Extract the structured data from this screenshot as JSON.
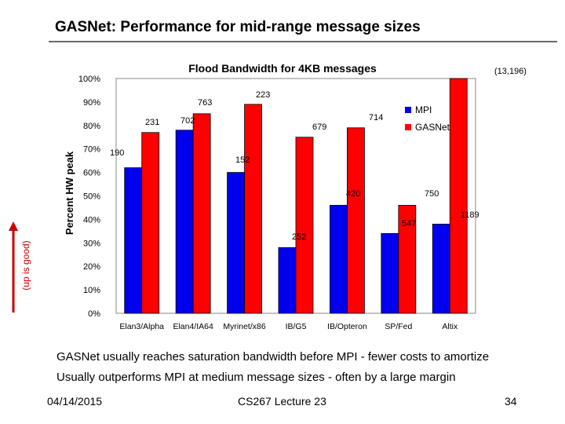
{
  "slide": {
    "title": "GASNet: Performance for mid-range message sizes",
    "side_note": "(up is good)",
    "bullets": [
      "GASNet usually reaches saturation bandwidth before MPI - fewer costs to amortize",
      "Usually outperforms MPI at medium message sizes - often by a large margin"
    ],
    "footer": {
      "date": "04/14/2015",
      "course": "CS267 Lecture 23",
      "page": "34"
    }
  },
  "colors": {
    "mpi": "#0000ee",
    "gasnet": "#ff0000",
    "arrow": "#cc0000"
  },
  "chart_data": {
    "type": "bar",
    "title": "Flood Bandwidth for 4KB messages",
    "ylabel": "Percent HW peak",
    "xlabel": "",
    "ylim": [
      0,
      100
    ],
    "yticks": [
      "0%",
      "10%",
      "20%",
      "30%",
      "40%",
      "50%",
      "60%",
      "70%",
      "80%",
      "90%",
      "100%"
    ],
    "grid": false,
    "legend": "right",
    "categories": [
      "Elan3/Alpha",
      "Elan4/IA64",
      "Myrinet/x86",
      "IB/G5",
      "IB/Opteron",
      "SP/Fed",
      "Altix"
    ],
    "series": [
      {
        "name": "MPI",
        "values": [
          62,
          78,
          60,
          28,
          46,
          34,
          38
        ],
        "labels": [
          "190",
          "702",
          "152",
          "252",
          "420",
          "547",
          "1189"
        ]
      },
      {
        "name": "GASNet",
        "values": [
          77,
          85,
          89,
          75,
          79,
          46,
          100
        ],
        "labels": [
          "231",
          "763",
          "223",
          "679",
          "714",
          "750",
          "(13,196)"
        ]
      }
    ]
  }
}
